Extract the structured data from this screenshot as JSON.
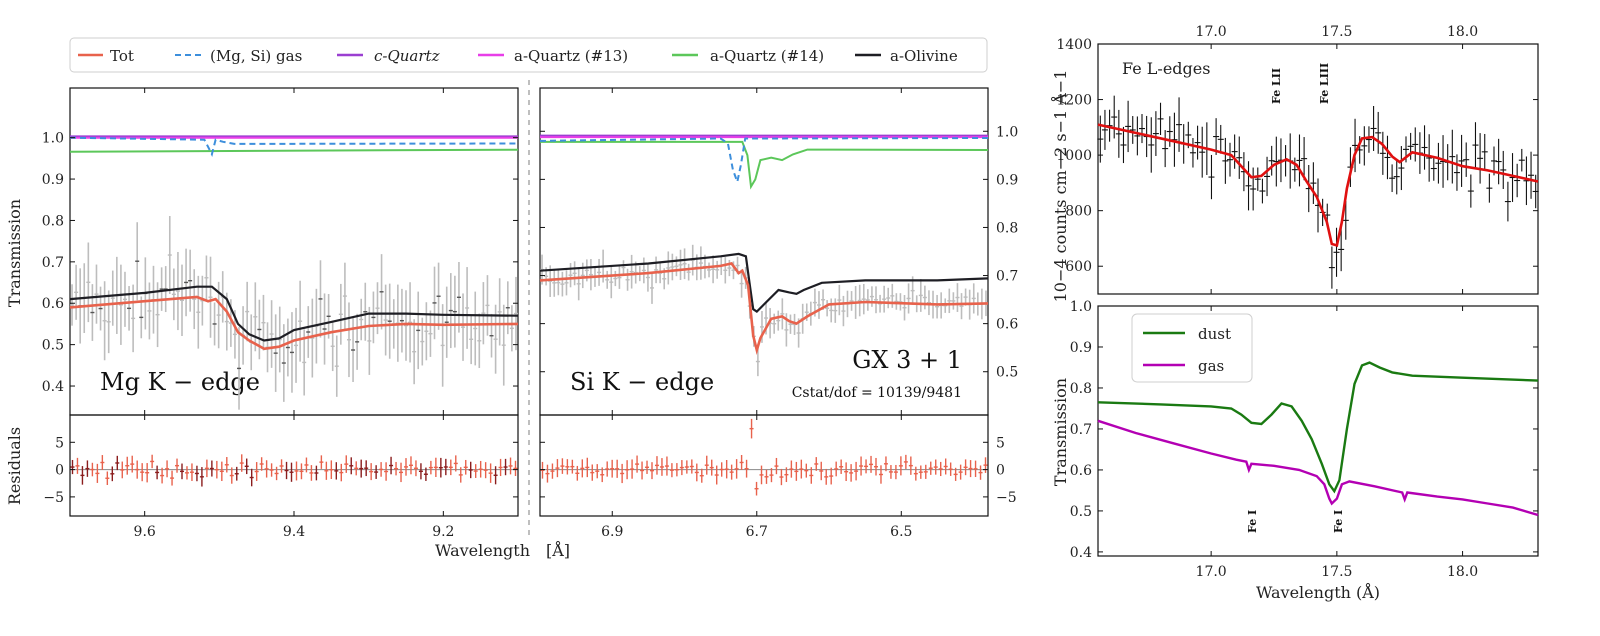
{
  "chart_data": [
    {
      "id": "left",
      "type": "line",
      "panels": [
        "Mg K-edge",
        "Si K-edge"
      ],
      "legend": [
        "Tot",
        "(Mg, Si) gas",
        "c-Quartz",
        "a-Quartz (#13)",
        "a-Quartz (#14)",
        "a-Olivine"
      ],
      "colors": {
        "Tot": "#e8624c",
        "gas": "#3d8fdc",
        "cq": "#9b3fd1",
        "aq13": "#e83ee8",
        "aq14": "#5cc75a",
        "olivine": "#1e1e24",
        "data": "#bdbdbd",
        "resid": "#e8624c"
      },
      "ylabel": "Transmission",
      "resid_label": "Residuals",
      "xlabel": "Wavelength",
      "xunit": "[Å]",
      "mg": {
        "label": "Mg K − edge",
        "xlim": [
          9.7,
          9.1
        ],
        "ylim": [
          0.33,
          1.12
        ],
        "xticks": [
          "9.6",
          "9.4",
          "9.2"
        ],
        "xtick_values": [
          9.6,
          9.4,
          9.2
        ],
        "yticks": [
          "0.4",
          "0.5",
          "0.6",
          "0.7",
          "0.8",
          "0.9",
          "1.0"
        ],
        "ytick_values": [
          0.4,
          0.5,
          0.6,
          0.7,
          0.8,
          0.9,
          1.0
        ],
        "tot": [
          [
            9.7,
            0.59
          ],
          [
            9.6,
            0.605
          ],
          [
            9.53,
            0.615
          ],
          [
            9.515,
            0.605
          ],
          [
            9.505,
            0.61
          ],
          [
            9.49,
            0.58
          ],
          [
            9.475,
            0.53
          ],
          [
            9.46,
            0.51
          ],
          [
            9.44,
            0.49
          ],
          [
            9.42,
            0.495
          ],
          [
            9.4,
            0.51
          ],
          [
            9.35,
            0.53
          ],
          [
            9.3,
            0.545
          ],
          [
            9.25,
            0.55
          ],
          [
            9.2,
            0.548
          ],
          [
            9.1,
            0.55
          ]
        ],
        "olivine": [
          [
            9.7,
            0.61
          ],
          [
            9.6,
            0.625
          ],
          [
            9.53,
            0.64
          ],
          [
            9.51,
            0.64
          ],
          [
            9.49,
            0.61
          ],
          [
            9.475,
            0.55
          ],
          [
            9.46,
            0.525
          ],
          [
            9.44,
            0.51
          ],
          [
            9.42,
            0.515
          ],
          [
            9.4,
            0.535
          ],
          [
            9.35,
            0.555
          ],
          [
            9.3,
            0.575
          ],
          [
            9.25,
            0.575
          ],
          [
            9.2,
            0.572
          ],
          [
            9.1,
            0.57
          ]
        ],
        "gas": [
          [
            9.7,
            1.0
          ],
          [
            9.52,
            0.995
          ],
          [
            9.51,
            0.96
          ],
          [
            9.505,
            0.995
          ],
          [
            9.495,
            0.99
          ],
          [
            9.48,
            0.985
          ],
          [
            9.1,
            0.986
          ]
        ],
        "cq": [
          [
            9.7,
            1.003
          ],
          [
            9.1,
            1.003
          ]
        ],
        "aq13": [
          [
            9.7,
            1.0
          ],
          [
            9.1,
            1.0
          ]
        ],
        "aq14": [
          [
            9.7,
            0.966
          ],
          [
            9.1,
            0.971
          ]
        ]
      },
      "si": {
        "label": "Si K − edge",
        "source": "GX 3 + 1",
        "cstat": "Cstat/dof = 10139/9481",
        "xlim": [
          7.0,
          6.38
        ],
        "ylim": [
          0.41,
          1.09
        ],
        "xticks": [
          "6.9",
          "6.7",
          "6.5"
        ],
        "xtick_values": [
          6.9,
          6.7,
          6.5
        ],
        "yticks": [
          "0.5",
          "0.6",
          "0.7",
          "0.8",
          "0.9",
          "1.0"
        ],
        "ytick_values": [
          0.5,
          0.6,
          0.7,
          0.8,
          0.9,
          1.0
        ],
        "tot": [
          [
            7.0,
            0.69
          ],
          [
            6.85,
            0.705
          ],
          [
            6.75,
            0.72
          ],
          [
            6.735,
            0.725
          ],
          [
            6.725,
            0.705
          ],
          [
            6.72,
            0.71
          ],
          [
            6.712,
            0.68
          ],
          [
            6.705,
            0.575
          ],
          [
            6.7,
            0.545
          ],
          [
            6.695,
            0.57
          ],
          [
            6.68,
            0.61
          ],
          [
            6.665,
            0.615
          ],
          [
            6.655,
            0.605
          ],
          [
            6.645,
            0.6
          ],
          [
            6.63,
            0.615
          ],
          [
            6.6,
            0.64
          ],
          [
            6.55,
            0.645
          ],
          [
            6.45,
            0.64
          ],
          [
            6.38,
            0.642
          ]
        ],
        "olivine": [
          [
            7.0,
            0.71
          ],
          [
            6.85,
            0.725
          ],
          [
            6.75,
            0.74
          ],
          [
            6.725,
            0.745
          ],
          [
            6.715,
            0.74
          ],
          [
            6.71,
            0.685
          ],
          [
            6.705,
            0.63
          ],
          [
            6.7,
            0.625
          ],
          [
            6.69,
            0.64
          ],
          [
            6.67,
            0.67
          ],
          [
            6.655,
            0.665
          ],
          [
            6.645,
            0.662
          ],
          [
            6.635,
            0.67
          ],
          [
            6.61,
            0.685
          ],
          [
            6.55,
            0.69
          ],
          [
            6.45,
            0.69
          ],
          [
            6.38,
            0.694
          ]
        ],
        "gas": [
          [
            7.0,
            0.98
          ],
          [
            6.75,
            0.985
          ],
          [
            6.74,
            0.975
          ],
          [
            6.733,
            0.92
          ],
          [
            6.727,
            0.895
          ],
          [
            6.722,
            0.93
          ],
          [
            6.716,
            0.985
          ],
          [
            6.7,
            0.985
          ],
          [
            6.38,
            0.986
          ]
        ],
        "cq": [
          [
            7.0,
            0.991
          ],
          [
            6.38,
            0.991
          ]
        ],
        "aq13": [
          [
            7.0,
            0.988
          ],
          [
            6.38,
            0.988
          ]
        ],
        "aq14": [
          [
            7.0,
            0.978
          ],
          [
            6.72,
            0.978
          ],
          [
            6.713,
            0.95
          ],
          [
            6.708,
            0.885
          ],
          [
            6.702,
            0.9
          ],
          [
            6.695,
            0.94
          ],
          [
            6.68,
            0.945
          ],
          [
            6.665,
            0.94
          ],
          [
            6.65,
            0.952
          ],
          [
            6.63,
            0.962
          ],
          [
            6.6,
            0.962
          ],
          [
            6.38,
            0.961
          ]
        ]
      },
      "resid": {
        "ylim": [
          -8.5,
          10.0
        ],
        "yticks": [
          "5",
          "0",
          "−5"
        ],
        "ytick_values": [
          5,
          0,
          -5
        ]
      }
    },
    {
      "id": "fe-top",
      "type": "line",
      "label": "Fe L-edges",
      "annotations": [
        "Fe LII",
        "Fe LIII"
      ],
      "ylabel": "10−4 counts cm−2 s−1 Å−1",
      "xlim": [
        16.55,
        18.3
      ],
      "ylim": [
        500,
        1400
      ],
      "xticks": [
        "17.0",
        "17.5",
        "18.0"
      ],
      "xtick_values": [
        17.0,
        17.5,
        18.0
      ],
      "yticks": [
        "600",
        "800",
        "1000",
        "1200",
        "1400"
      ],
      "ytick_values": [
        600,
        800,
        1000,
        1200,
        1400
      ],
      "model": [
        [
          16.55,
          1110
        ],
        [
          16.7,
          1080
        ],
        [
          16.85,
          1050
        ],
        [
          17.0,
          1020
        ],
        [
          17.08,
          1000
        ],
        [
          17.12,
          960
        ],
        [
          17.16,
          920
        ],
        [
          17.2,
          925
        ],
        [
          17.25,
          965
        ],
        [
          17.3,
          985
        ],
        [
          17.34,
          965
        ],
        [
          17.38,
          905
        ],
        [
          17.42,
          850
        ],
        [
          17.46,
          760
        ],
        [
          17.48,
          680
        ],
        [
          17.5,
          675
        ],
        [
          17.52,
          760
        ],
        [
          17.54,
          880
        ],
        [
          17.57,
          1000
        ],
        [
          17.6,
          1060
        ],
        [
          17.64,
          1065
        ],
        [
          17.68,
          1040
        ],
        [
          17.72,
          995
        ],
        [
          17.75,
          975
        ],
        [
          17.8,
          1010
        ],
        [
          17.9,
          990
        ],
        [
          18.0,
          960
        ],
        [
          18.1,
          945
        ],
        [
          18.2,
          925
        ],
        [
          18.3,
          905
        ]
      ],
      "colors": {
        "model": "#e01010",
        "data": "#111111"
      }
    },
    {
      "id": "fe-bottom",
      "type": "line",
      "legend": [
        "dust",
        "gas"
      ],
      "annotations": [
        "Fe I",
        "Fe I"
      ],
      "ylabel": "Transmission",
      "xlabel": "Wavelength (Å)",
      "xlim": [
        16.55,
        18.3
      ],
      "ylim": [
        0.39,
        1.0
      ],
      "xticks": [
        "17.0",
        "17.5",
        "18.0"
      ],
      "xtick_values": [
        17.0,
        17.5,
        18.0
      ],
      "yticks": [
        "0.4",
        "0.5",
        "0.6",
        "0.7",
        "0.8",
        "0.9",
        "1.0"
      ],
      "ytick_values": [
        0.4,
        0.5,
        0.6,
        0.7,
        0.8,
        0.9,
        1.0
      ],
      "dust": [
        [
          16.55,
          0.765
        ],
        [
          16.8,
          0.76
        ],
        [
          17.0,
          0.755
        ],
        [
          17.08,
          0.75
        ],
        [
          17.12,
          0.735
        ],
        [
          17.16,
          0.715
        ],
        [
          17.2,
          0.712
        ],
        [
          17.24,
          0.735
        ],
        [
          17.28,
          0.762
        ],
        [
          17.32,
          0.755
        ],
        [
          17.36,
          0.72
        ],
        [
          17.4,
          0.675
        ],
        [
          17.44,
          0.615
        ],
        [
          17.47,
          0.565
        ],
        [
          17.49,
          0.548
        ],
        [
          17.51,
          0.575
        ],
        [
          17.54,
          0.7
        ],
        [
          17.57,
          0.81
        ],
        [
          17.6,
          0.855
        ],
        [
          17.63,
          0.862
        ],
        [
          17.67,
          0.85
        ],
        [
          17.72,
          0.838
        ],
        [
          17.8,
          0.83
        ],
        [
          18.0,
          0.825
        ],
        [
          18.3,
          0.818
        ]
      ],
      "gas": [
        [
          16.55,
          0.72
        ],
        [
          16.7,
          0.69
        ],
        [
          16.85,
          0.665
        ],
        [
          17.0,
          0.64
        ],
        [
          17.1,
          0.625
        ],
        [
          17.14,
          0.62
        ],
        [
          17.15,
          0.6
        ],
        [
          17.16,
          0.615
        ],
        [
          17.25,
          0.61
        ],
        [
          17.35,
          0.6
        ],
        [
          17.42,
          0.585
        ],
        [
          17.45,
          0.565
        ],
        [
          17.47,
          0.53
        ],
        [
          17.48,
          0.518
        ],
        [
          17.5,
          0.53
        ],
        [
          17.52,
          0.565
        ],
        [
          17.55,
          0.572
        ],
        [
          17.65,
          0.56
        ],
        [
          17.76,
          0.545
        ],
        [
          17.77,
          0.528
        ],
        [
          17.78,
          0.545
        ],
        [
          17.9,
          0.535
        ],
        [
          18.0,
          0.528
        ],
        [
          18.1,
          0.518
        ],
        [
          18.2,
          0.508
        ],
        [
          18.3,
          0.49
        ]
      ],
      "colors": {
        "dust": "#1a7a12",
        "gas": "#b300b3"
      }
    }
  ]
}
